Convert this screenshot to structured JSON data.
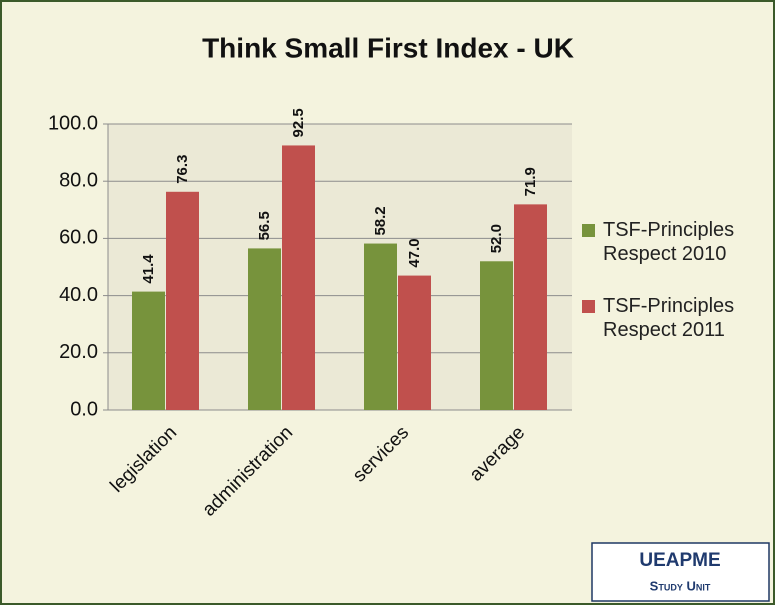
{
  "chart_data": {
    "type": "bar",
    "title": "Think Small First Index - UK",
    "categories": [
      "legislation",
      "administration",
      "services",
      "average"
    ],
    "series": [
      {
        "name": "TSF-Principles Respect 2010",
        "color": "#77933c",
        "values": [
          41.4,
          56.5,
          58.2,
          52.0
        ],
        "value_labels": [
          "41.4",
          "56.5",
          "58.2",
          "52.0"
        ]
      },
      {
        "name": "TSF-Principles Respect 2011",
        "color": "#c0504d",
        "values": [
          76.3,
          92.5,
          47.0,
          71.9
        ],
        "value_labels": [
          "76.3",
          "92.5",
          "47.0",
          "71.9"
        ]
      }
    ],
    "ylim": [
      0,
      100
    ],
    "yticks": [
      {
        "value": 0,
        "label": "0.0"
      },
      {
        "value": 20,
        "label": "20.0"
      },
      {
        "value": 40,
        "label": "40.0"
      },
      {
        "value": 60,
        "label": "60.0"
      },
      {
        "value": 80,
        "label": "80.0"
      },
      {
        "value": 100,
        "label": "100.0"
      }
    ],
    "grid": true,
    "legend": "right"
  },
  "badge": {
    "title": "UEAPME",
    "subtitle": "Study Unit"
  }
}
